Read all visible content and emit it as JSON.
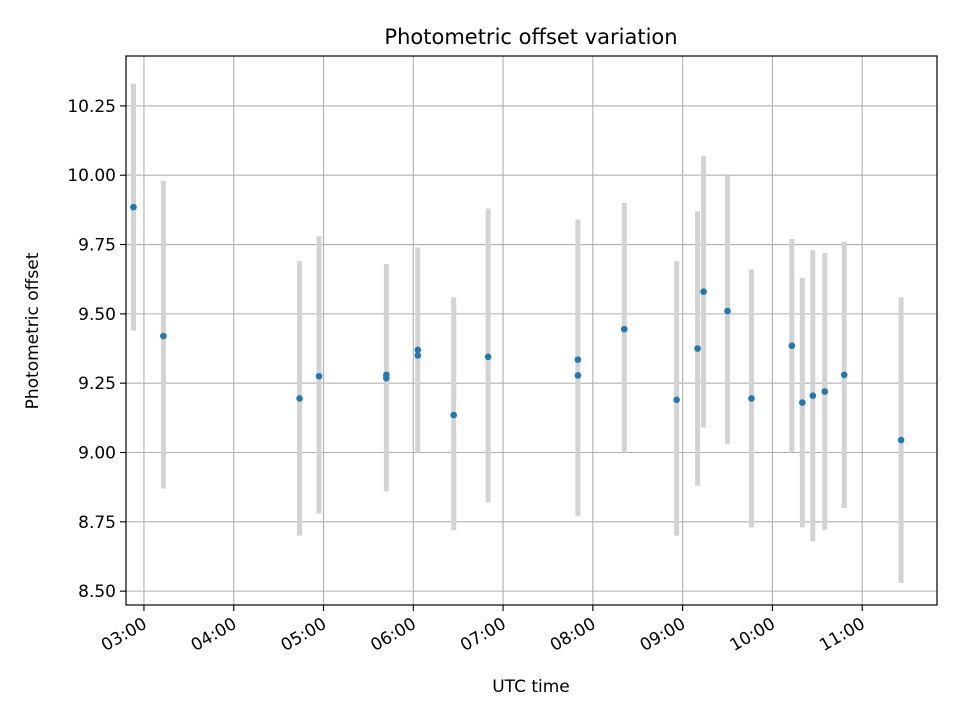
{
  "chart_data": {
    "type": "scatter",
    "title": "Photometric offset variation",
    "xlabel": "UTC time",
    "ylabel": "Photometric offset",
    "grid": true,
    "xlim": [
      "02:48",
      "11:50"
    ],
    "ylim": [
      8.45,
      10.43
    ],
    "xticks": [
      "03:00",
      "04:00",
      "05:00",
      "06:00",
      "07:00",
      "08:00",
      "09:00",
      "10:00",
      "11:00"
    ],
    "yticks": [
      "8.50",
      "8.75",
      "9.00",
      "9.25",
      "9.50",
      "9.75",
      "10.00",
      "10.25"
    ],
    "point_color": "#1f77b4",
    "errorbar_color": "#d3d3d3",
    "points": [
      {
        "x": "02:53",
        "y": 9.885,
        "ylow": 9.44,
        "yhigh": 10.33
      },
      {
        "x": "03:13",
        "y": 9.42,
        "ylow": 8.87,
        "yhigh": 9.98
      },
      {
        "x": "04:44",
        "y": 9.195,
        "ylow": 8.7,
        "yhigh": 9.69
      },
      {
        "x": "04:57",
        "y": 9.275,
        "ylow": 8.78,
        "yhigh": 9.78
      },
      {
        "x": "05:42",
        "y": 9.28,
        "ylow": 8.86,
        "yhigh": 9.68
      },
      {
        "x": "05:42",
        "y": 9.268
      },
      {
        "x": "06:03",
        "y": 9.37,
        "ylow": 9.0,
        "yhigh": 9.74
      },
      {
        "x": "06:03",
        "y": 9.35
      },
      {
        "x": "06:27",
        "y": 9.135,
        "ylow": 8.72,
        "yhigh": 9.56
      },
      {
        "x": "06:50",
        "y": 9.345,
        "ylow": 8.82,
        "yhigh": 9.88
      },
      {
        "x": "07:50",
        "y": 9.335,
        "ylow": 8.77,
        "yhigh": 9.84
      },
      {
        "x": "07:50",
        "y": 9.278
      },
      {
        "x": "08:21",
        "y": 9.445,
        "ylow": 9.0,
        "yhigh": 9.9
      },
      {
        "x": "08:56",
        "y": 9.19,
        "ylow": 8.7,
        "yhigh": 9.69
      },
      {
        "x": "09:10",
        "y": 9.375,
        "ylow": 8.88,
        "yhigh": 9.87
      },
      {
        "x": "09:14",
        "y": 9.58,
        "ylow": 9.09,
        "yhigh": 10.07
      },
      {
        "x": "09:30",
        "y": 9.51,
        "ylow": 9.03,
        "yhigh": 10.0
      },
      {
        "x": "09:46",
        "y": 9.195,
        "ylow": 8.73,
        "yhigh": 9.66
      },
      {
        "x": "10:13",
        "y": 9.385,
        "ylow": 9.0,
        "yhigh": 9.77
      },
      {
        "x": "10:20",
        "y": 9.18,
        "ylow": 8.73,
        "yhigh": 9.63
      },
      {
        "x": "10:27",
        "y": 9.205,
        "ylow": 8.68,
        "yhigh": 9.73
      },
      {
        "x": "10:35",
        "y": 9.22,
        "ylow": 8.72,
        "yhigh": 9.72
      },
      {
        "x": "10:48",
        "y": 9.28,
        "ylow": 8.8,
        "yhigh": 9.76
      },
      {
        "x": "11:26",
        "y": 9.045,
        "ylow": 8.53,
        "yhigh": 9.56
      }
    ]
  }
}
